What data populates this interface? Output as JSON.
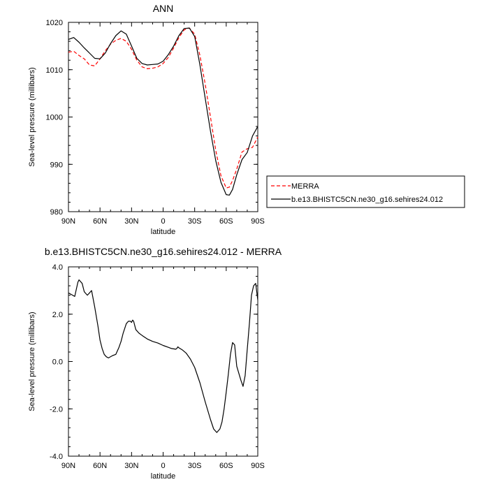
{
  "chart_data": [
    {
      "type": "line",
      "title": "ANN",
      "xlabel": "latitude",
      "ylabel": "Sea-level pressure (millibars)",
      "xlim": [
        90,
        -90
      ],
      "ylim": [
        980,
        1020
      ],
      "xticks": [
        90,
        60,
        30,
        0,
        -30,
        -60,
        -90
      ],
      "xtick_labels": [
        "90N",
        "60N",
        "30N",
        "0",
        "30S",
        "60S",
        "90S"
      ],
      "yticks": [
        980,
        990,
        1000,
        1010,
        1020
      ],
      "ytick_labels": [
        "980",
        "990",
        "1000",
        "1010",
        "1020"
      ],
      "grid": false,
      "legend_position": "right, outside plot",
      "series": [
        {
          "name": "MERRA",
          "color": "#ff0000",
          "dash": "dashed",
          "x": [
            90,
            85,
            80,
            75,
            70,
            65,
            60,
            55,
            50,
            45,
            40,
            35,
            30,
            25,
            20,
            15,
            10,
            5,
            0,
            -5,
            -10,
            -15,
            -20,
            -25,
            -30,
            -35,
            -40,
            -45,
            -50,
            -55,
            -60,
            -63,
            -66,
            -70,
            -75,
            -80,
            -85,
            -90
          ],
          "y": [
            1013.7,
            1013.9,
            1013.0,
            1012.3,
            1011.0,
            1010.8,
            1012.3,
            1014.0,
            1015.4,
            1016.2,
            1016.6,
            1016.0,
            1014.3,
            1012.0,
            1010.6,
            1010.2,
            1010.3,
            1010.6,
            1011.3,
            1012.6,
            1014.6,
            1016.8,
            1018.4,
            1018.8,
            1017.5,
            1013.0,
            1007.0,
            1000.0,
            993.0,
            987.6,
            985.0,
            985.2,
            986.6,
            989.0,
            992.6,
            993.3,
            993.6,
            995.8
          ]
        },
        {
          "name": "b.e13.BHISTC5CN.ne30_g16.sehires24.012",
          "color": "#000000",
          "dash": "solid",
          "x": [
            90,
            85,
            80,
            75,
            70,
            65,
            60,
            55,
            50,
            45,
            40,
            35,
            30,
            25,
            20,
            15,
            10,
            5,
            0,
            -5,
            -10,
            -15,
            -20,
            -25,
            -30,
            -35,
            -40,
            -45,
            -50,
            -55,
            -60,
            -63,
            -66,
            -70,
            -75,
            -80,
            -85,
            -90
          ],
          "y": [
            1016.4,
            1016.8,
            1015.8,
            1014.6,
            1013.5,
            1012.4,
            1012.3,
            1013.5,
            1015.5,
            1017.2,
            1018.2,
            1017.5,
            1015.0,
            1012.4,
            1011.3,
            1011.0,
            1011.1,
            1011.2,
            1011.8,
            1013.2,
            1015.0,
            1017.2,
            1018.7,
            1018.8,
            1017.0,
            1011.0,
            1004.0,
            997.0,
            990.8,
            986.2,
            983.6,
            983.5,
            984.7,
            987.8,
            991.0,
            992.5,
            996.0,
            998.0
          ]
        }
      ]
    },
    {
      "type": "line",
      "title": "b.e13.BHISTC5CN.ne30_g16.sehires24.012 - MERRA",
      "xlabel": "latitude",
      "ylabel": "Sea-level pressure (millibars)",
      "xlim": [
        90,
        -90
      ],
      "ylim": [
        -4.0,
        4.0
      ],
      "xticks": [
        90,
        60,
        30,
        0,
        -30,
        -60,
        -90
      ],
      "xtick_labels": [
        "90N",
        "60N",
        "30N",
        "0",
        "30S",
        "60S",
        "90S"
      ],
      "yticks": [
        -4.0,
        -2.0,
        0.0,
        2.0,
        4.0
      ],
      "ytick_labels": [
        "-4.0",
        "-2.0",
        "0.0",
        "2.0",
        "4.0"
      ],
      "grid": false,
      "series": [
        {
          "color": "#000000",
          "dash": "solid",
          "x": [
            90,
            86,
            84,
            81,
            80,
            77,
            75,
            73,
            72,
            70,
            68,
            65,
            62,
            60,
            58,
            56,
            54,
            52,
            48,
            45,
            42,
            40,
            38,
            35,
            33,
            31,
            30,
            29,
            28,
            26,
            23,
            20,
            15,
            10,
            5,
            0,
            -5,
            -8,
            -12,
            -13,
            -14,
            -15,
            -18,
            -22,
            -26,
            -30,
            -35,
            -40,
            -45,
            -48,
            -51,
            -54,
            -56,
            -58,
            -60,
            -62,
            -64,
            -66,
            -68,
            -70,
            -72,
            -74,
            -76,
            -78,
            -80,
            -82,
            -84,
            -86,
            -88,
            -90
          ],
          "y": [
            2.9,
            2.8,
            2.75,
            3.35,
            3.45,
            3.3,
            2.95,
            2.85,
            2.8,
            2.9,
            3.0,
            2.3,
            1.5,
            0.9,
            0.55,
            0.3,
            0.2,
            0.15,
            0.25,
            0.3,
            0.6,
            0.85,
            1.2,
            1.6,
            1.7,
            1.7,
            1.65,
            1.75,
            1.7,
            1.35,
            1.2,
            1.1,
            0.95,
            0.85,
            0.78,
            0.68,
            0.6,
            0.55,
            0.52,
            0.55,
            0.62,
            0.58,
            0.5,
            0.35,
            0.1,
            -0.25,
            -0.9,
            -1.7,
            -2.45,
            -2.85,
            -3.0,
            -2.85,
            -2.55,
            -2.0,
            -1.3,
            -0.55,
            0.3,
            0.8,
            0.7,
            -0.2,
            -0.5,
            -0.8,
            -1.05,
            -0.6,
            0.5,
            1.6,
            2.8,
            3.2,
            3.3,
            2.6
          ]
        }
      ]
    }
  ]
}
